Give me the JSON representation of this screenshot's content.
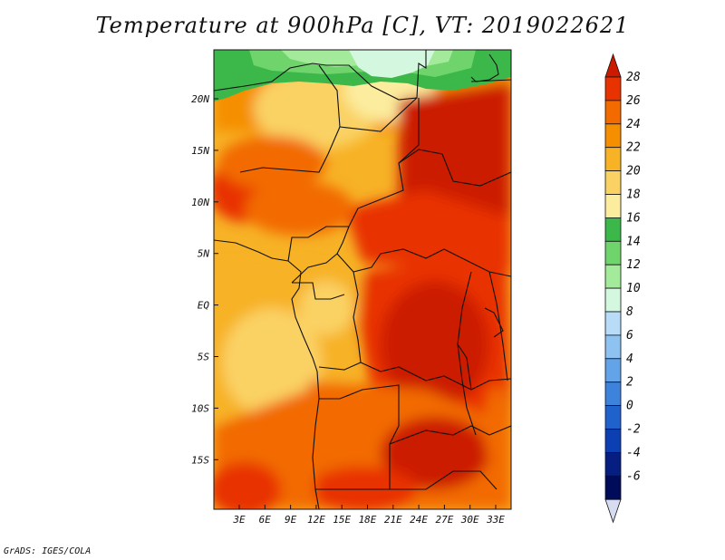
{
  "title": "Temperature at 900hPa [C], VT: 2019022621",
  "credit": "GrADS: IGES/COLA",
  "map": {
    "lat_labels": [
      "20N",
      "15N",
      "10N",
      "5N",
      "EQ",
      "5S",
      "10S",
      "15S"
    ],
    "lon_labels": [
      "3E",
      "6E",
      "9E",
      "12E",
      "15E",
      "18E",
      "21E",
      "24E",
      "27E",
      "30E",
      "33E"
    ]
  },
  "colorbar": {
    "labels": [
      "28",
      "26",
      "24",
      "22",
      "20",
      "18",
      "16",
      "14",
      "12",
      "10",
      "8",
      "6",
      "4",
      "2",
      "0",
      "-2",
      "-4",
      "-6"
    ],
    "colors": [
      "#cc1a00",
      "#e83300",
      "#f26a00",
      "#f58f00",
      "#f7b226",
      "#fad163",
      "#fcec9e",
      "#3cb84a",
      "#6fd46c",
      "#a3eb9a",
      "#d4f7e0",
      "#b8dcf7",
      "#8ec2f0",
      "#63a3e8",
      "#3d83dc",
      "#1f62cc",
      "#0b3fb2",
      "#061e82",
      "#000b5a"
    ],
    "under_color": "#d8dcf0"
  }
}
